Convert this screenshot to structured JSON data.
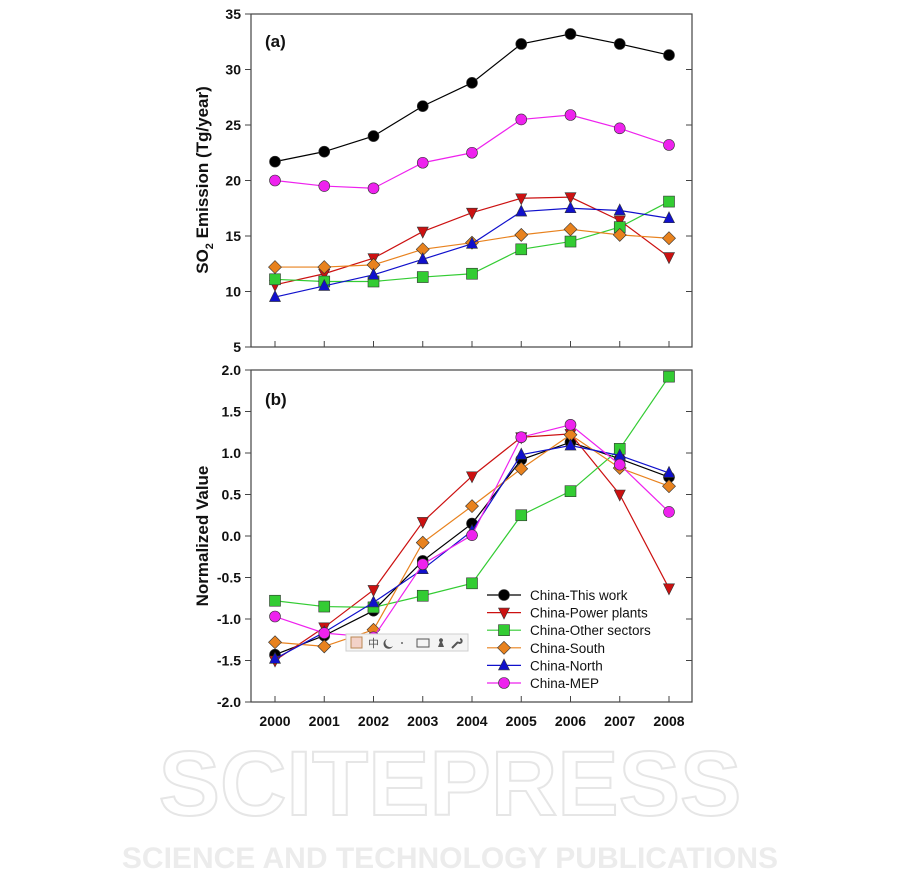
{
  "watermark": {
    "big": "SCITEPRESS",
    "small": "SCIENCE AND TECHNOLOGY PUBLICATIONS"
  },
  "ime_toolbar": {
    "icons": [
      "ime-logo-icon",
      "chinese-mode-icon",
      "moon-icon",
      "punctuation-icon",
      "keyboard-icon",
      "user-icon",
      "wrench-icon"
    ],
    "chinese_label": "中"
  },
  "chart_data": [
    {
      "type": "line",
      "panel_label": "(a)",
      "xlabel": "",
      "ylabel": "SO2 Emission (Tg/year)",
      "ylabel_parts": {
        "pre": "SO",
        "sub": "2",
        "post": " Emission (Tg/year)"
      },
      "x": [
        2000,
        2001,
        2002,
        2003,
        2004,
        2005,
        2006,
        2007,
        2008
      ],
      "xlim": [
        2000,
        2008
      ],
      "ylim": [
        5,
        35
      ],
      "yticks": [
        "5",
        "10",
        "15",
        "20",
        "25",
        "30",
        "35"
      ],
      "show_xtick_labels": false,
      "grid": false,
      "series": [
        {
          "name": "China-This work",
          "color": "#000000",
          "marker": "circle",
          "values": [
            21.7,
            22.6,
            24.0,
            26.7,
            28.8,
            32.3,
            33.2,
            32.3,
            31.3
          ]
        },
        {
          "name": "China-Power plants",
          "color": "#cc1111",
          "marker": "triangle-down",
          "values": [
            10.6,
            11.6,
            13.0,
            15.4,
            17.1,
            18.4,
            18.5,
            16.4,
            13.1
          ]
        },
        {
          "name": "China-Other sectors",
          "color": "#33cc33",
          "marker": "square",
          "values": [
            11.1,
            10.9,
            10.9,
            11.3,
            11.6,
            13.8,
            14.5,
            15.8,
            18.1
          ]
        },
        {
          "name": "China-South",
          "color": "#e8821e",
          "marker": "diamond",
          "values": [
            12.2,
            12.2,
            12.4,
            13.8,
            14.4,
            15.1,
            15.6,
            15.1,
            14.8
          ]
        },
        {
          "name": "China-North",
          "color": "#1010cc",
          "marker": "triangle-up",
          "values": [
            9.5,
            10.5,
            11.5,
            12.9,
            14.3,
            17.2,
            17.5,
            17.3,
            16.6
          ]
        },
        {
          "name": "China-MEP",
          "color": "#ee22ee",
          "marker": "circle",
          "values": [
            20.0,
            19.5,
            19.3,
            21.6,
            22.5,
            25.5,
            25.9,
            24.7,
            23.2
          ]
        }
      ]
    },
    {
      "type": "line",
      "panel_label": "(b)",
      "xlabel": "",
      "ylabel": "Normalized Value",
      "x": [
        2000,
        2001,
        2002,
        2003,
        2004,
        2005,
        2006,
        2007,
        2008
      ],
      "xticks": [
        "2000",
        "2001",
        "2002",
        "2003",
        "2004",
        "2005",
        "2006",
        "2007",
        "2008"
      ],
      "xlim": [
        2000,
        2008
      ],
      "ylim": [
        -2.0,
        2.0
      ],
      "yticks": [
        "-2.0",
        "-1.5",
        "-1.0",
        "-0.5",
        "0.0",
        "0.5",
        "1.0",
        "1.5",
        "2.0"
      ],
      "grid": false,
      "legend_placement": "bottom-right",
      "series": [
        {
          "name": "China-This work",
          "color": "#000000",
          "marker": "circle",
          "values": [
            -1.43,
            -1.2,
            -0.9,
            -0.3,
            0.15,
            0.92,
            1.13,
            0.93,
            0.71
          ]
        },
        {
          "name": "China-Power plants",
          "color": "#cc1111",
          "marker": "triangle-down",
          "values": [
            -1.5,
            -1.1,
            -0.65,
            0.17,
            0.72,
            1.19,
            1.23,
            0.5,
            -0.63
          ]
        },
        {
          "name": "China-Other sectors",
          "color": "#33cc33",
          "marker": "square",
          "values": [
            -0.78,
            -0.85,
            -0.86,
            -0.72,
            -0.57,
            0.25,
            0.54,
            1.05,
            1.92
          ]
        },
        {
          "name": "China-South",
          "color": "#e8821e",
          "marker": "diamond",
          "values": [
            -1.28,
            -1.33,
            -1.13,
            -0.08,
            0.36,
            0.81,
            1.22,
            0.82,
            0.6
          ]
        },
        {
          "name": "China-North",
          "color": "#1010cc",
          "marker": "triangle-up",
          "values": [
            -1.48,
            -1.16,
            -0.8,
            -0.4,
            0.06,
            0.98,
            1.09,
            0.97,
            0.76
          ]
        },
        {
          "name": "China-MEP",
          "color": "#ee22ee",
          "marker": "circle",
          "values": [
            -0.97,
            -1.17,
            -1.22,
            -0.34,
            0.01,
            1.19,
            1.34,
            0.86,
            0.29
          ]
        }
      ]
    }
  ]
}
